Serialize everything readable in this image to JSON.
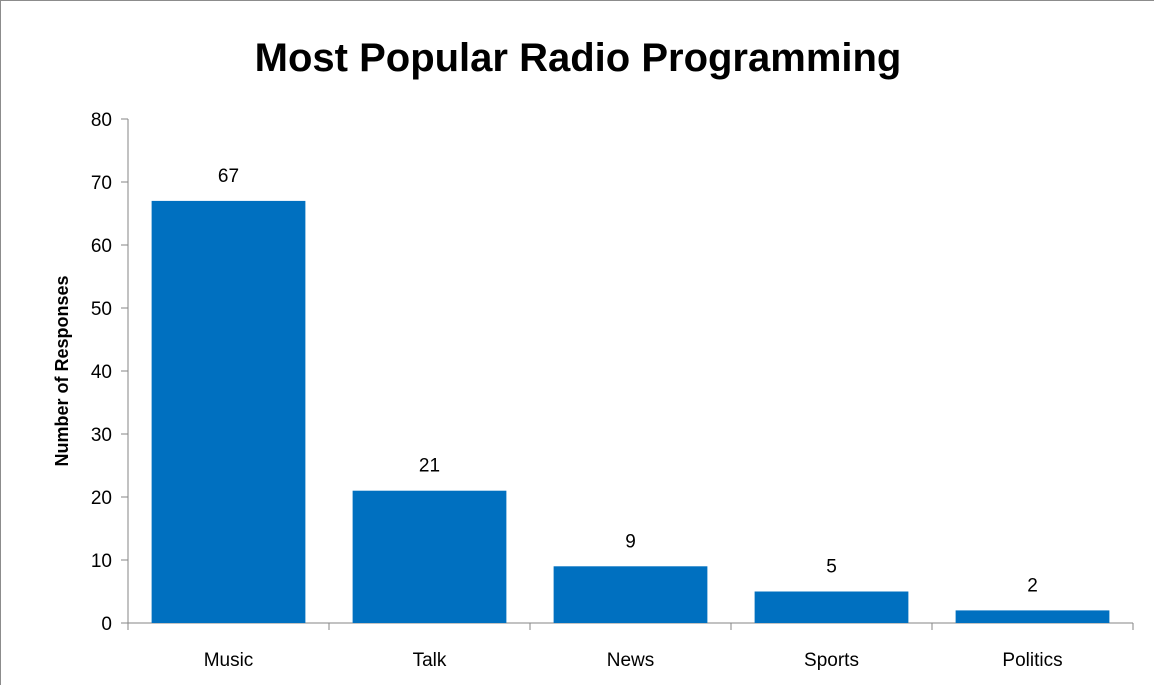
{
  "chart_data": {
    "type": "bar",
    "title": "Most Popular Radio Programming",
    "xlabel": "",
    "ylabel": "Number of Responses",
    "categories": [
      "Music",
      "Talk",
      "News",
      "Sports",
      "Politics"
    ],
    "values": [
      67,
      21,
      9,
      5,
      2
    ],
    "data_labels": [
      "67",
      "21",
      "9",
      "5",
      "2"
    ],
    "ylim": [
      0,
      80
    ],
    "yticks": [
      0,
      10,
      20,
      30,
      40,
      50,
      60,
      70,
      80
    ],
    "grid": false,
    "legend": "none",
    "bar_color": "#0070C0"
  }
}
